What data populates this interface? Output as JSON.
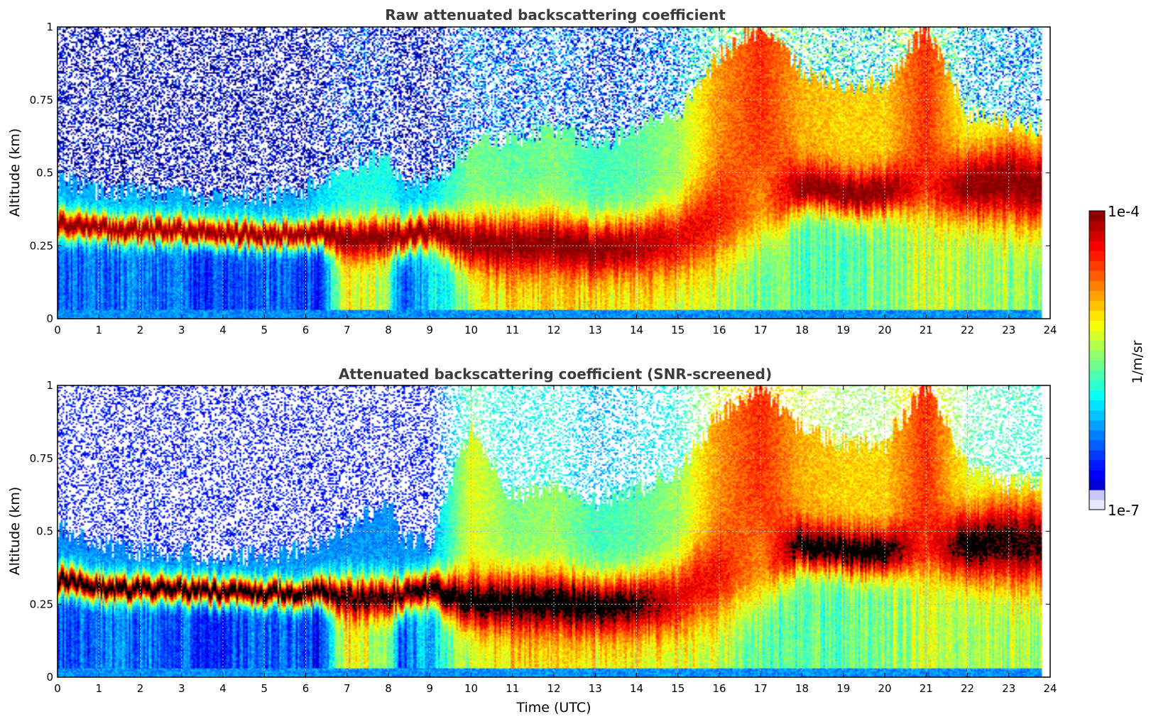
{
  "chart_data": [
    {
      "type": "heatmap",
      "title": "Raw attenuated backscattering coefficient",
      "xlabel": "",
      "ylabel": "Altitude (km)",
      "xlim": [
        0,
        24
      ],
      "ylim": [
        0,
        1
      ],
      "x_ticks": [
        "0",
        "1",
        "2",
        "3",
        "4",
        "5",
        "6",
        "7",
        "8",
        "9",
        "10",
        "11",
        "12",
        "13",
        "14",
        "15",
        "16",
        "17",
        "18",
        "19",
        "20",
        "21",
        "22",
        "23",
        "24"
      ],
      "y_ticks": [
        "0",
        "0.25",
        "0.5",
        "0.75",
        "1"
      ],
      "grid": true,
      "colormap": "jet",
      "clim": [
        "1e-7",
        "1e-4"
      ],
      "screened": false,
      "time_utc_h": [
        0,
        1,
        2,
        3,
        4,
        5,
        6,
        6.3,
        7,
        8,
        8.3,
        9,
        10,
        11,
        12,
        13,
        14,
        15,
        16,
        17,
        18,
        19,
        20,
        21,
        22,
        23,
        23.8
      ],
      "layer_top_km": [
        0.48,
        0.44,
        0.43,
        0.42,
        0.41,
        0.42,
        0.44,
        0.46,
        0.52,
        0.55,
        0.47,
        0.46,
        0.6,
        0.62,
        0.65,
        0.6,
        0.65,
        0.7,
        0.9,
        1.0,
        0.85,
        0.8,
        0.8,
        1.0,
        0.7,
        0.68,
        0.66
      ],
      "peak_center_km": [
        0.33,
        0.31,
        0.3,
        0.3,
        0.29,
        0.29,
        0.29,
        0.3,
        0.27,
        0.28,
        0.28,
        0.3,
        0.26,
        0.25,
        0.26,
        0.24,
        0.25,
        0.27,
        0.35,
        0.4,
        0.45,
        0.43,
        0.43,
        0.45,
        0.45,
        0.47,
        0.45
      ],
      "peak_halfwidth_km": [
        0.05,
        0.045,
        0.045,
        0.045,
        0.045,
        0.045,
        0.045,
        0.05,
        0.07,
        0.07,
        0.06,
        0.06,
        0.09,
        0.1,
        0.1,
        0.1,
        0.1,
        0.12,
        0.15,
        0.15,
        0.08,
        0.08,
        0.08,
        0.1,
        0.12,
        0.15,
        0.15
      ],
      "peak_log10": [
        -4,
        -4,
        -4,
        -4,
        -4,
        -4,
        -4,
        -4,
        -4,
        -4,
        -4,
        -4,
        -4,
        -4,
        -4,
        -4,
        -4.1,
        -4.3,
        -4.4,
        -4.8,
        -4,
        -4,
        -4,
        -4.5,
        -4,
        -4,
        -4
      ],
      "surface_log10": [
        -6.4,
        -6.3,
        -6.3,
        -6.4,
        -6.5,
        -6.3,
        -6.4,
        -6.6,
        -5.0,
        -5.5,
        -6.4,
        -6.0,
        -5.3,
        -5.0,
        -5.1,
        -5.1,
        -5.1,
        -5.2,
        -5.3,
        -5.6,
        -5.6,
        -5.6,
        -5.5,
        -5.3,
        -5.4,
        -5.4,
        -5.4
      ],
      "above_layer_log10": [
        -6.9,
        -6.9,
        -6.9,
        -6.9,
        -6.9,
        -6.9,
        -6.9,
        -6.8,
        -6.6,
        -6.6,
        -6.8,
        -6.8,
        -6.3,
        -6.4,
        -6.3,
        -6.5,
        -6.4,
        -6.2,
        -5.6,
        -5.3,
        -5.7,
        -5.8,
        -5.8,
        -5.3,
        -6.0,
        -6.1,
        -6.2
      ]
    },
    {
      "type": "heatmap",
      "title": "Attenuated backscattering coefficient (SNR-screened)",
      "xlabel": "Time (UTC)",
      "ylabel": "Altitude (km)",
      "xlim": [
        0,
        24
      ],
      "ylim": [
        0,
        1
      ],
      "x_ticks": [
        "0",
        "1",
        "2",
        "3",
        "4",
        "5",
        "6",
        "7",
        "8",
        "9",
        "10",
        "11",
        "12",
        "13",
        "14",
        "15",
        "16",
        "17",
        "18",
        "19",
        "20",
        "21",
        "22",
        "23",
        "24"
      ],
      "y_ticks": [
        "0",
        "0.25",
        "0.5",
        "0.75",
        "1"
      ],
      "grid": true,
      "colormap": "jet",
      "clim": [
        "1e-7",
        "1e-4"
      ],
      "screened": true,
      "over_range_color": "#000000",
      "time_utc_h": [
        0,
        1,
        2,
        3,
        4,
        5,
        6,
        6.3,
        7,
        8,
        8.3,
        9,
        10,
        11,
        12,
        13,
        14,
        15,
        16,
        17,
        18,
        19,
        20,
        21,
        22,
        23,
        23.8
      ],
      "layer_top_km": [
        0.52,
        0.45,
        0.43,
        0.42,
        0.41,
        0.42,
        0.44,
        0.46,
        0.52,
        0.6,
        0.48,
        0.46,
        0.85,
        0.62,
        0.65,
        0.6,
        0.65,
        0.7,
        0.9,
        1.0,
        0.85,
        0.8,
        0.8,
        1.0,
        0.72,
        0.66,
        0.68
      ],
      "peak_center_km": [
        0.33,
        0.31,
        0.3,
        0.3,
        0.29,
        0.29,
        0.29,
        0.3,
        0.27,
        0.28,
        0.28,
        0.3,
        0.26,
        0.25,
        0.26,
        0.24,
        0.25,
        0.27,
        0.35,
        0.4,
        0.45,
        0.43,
        0.43,
        0.45,
        0.45,
        0.47,
        0.45
      ],
      "peak_halfwidth_km": [
        0.05,
        0.045,
        0.045,
        0.045,
        0.045,
        0.045,
        0.045,
        0.05,
        0.07,
        0.07,
        0.06,
        0.06,
        0.09,
        0.1,
        0.1,
        0.1,
        0.1,
        0.12,
        0.15,
        0.15,
        0.08,
        0.08,
        0.08,
        0.1,
        0.12,
        0.15,
        0.15
      ],
      "peak_log10": [
        -3.8,
        -3.8,
        -3.8,
        -3.8,
        -3.8,
        -3.8,
        -3.8,
        -3.8,
        -3.9,
        -3.9,
        -3.9,
        -3.8,
        -3.8,
        -3.8,
        -3.8,
        -3.8,
        -3.9,
        -4.3,
        -4.4,
        -4.8,
        -3.8,
        -3.8,
        -3.8,
        -4.5,
        -3.8,
        -3.9,
        -3.9
      ],
      "surface_log10": [
        -6.4,
        -6.3,
        -6.3,
        -6.4,
        -6.5,
        -6.3,
        -6.4,
        -6.6,
        -5.0,
        -5.5,
        -6.4,
        -6.0,
        -5.3,
        -5.0,
        -5.1,
        -5.1,
        -5.1,
        -5.2,
        -5.3,
        -5.6,
        -5.6,
        -5.6,
        -5.5,
        -5.3,
        -5.4,
        -5.4,
        -5.4
      ],
      "above_layer_log10": [
        -7,
        -7,
        -7,
        -7,
        -7,
        -7,
        -7,
        -7,
        -7,
        -7,
        -7,
        -7,
        -6.0,
        -6.3,
        -6.2,
        -6.5,
        -6.4,
        -6.2,
        -5.6,
        -5.3,
        -5.7,
        -5.8,
        -5.8,
        -5.3,
        -6.0,
        -6.1,
        -6.2
      ]
    }
  ],
  "colorbar": {
    "label": "1/m/sr",
    "max_label": "1e-4",
    "min_label": "1e-7",
    "levels": 30
  }
}
